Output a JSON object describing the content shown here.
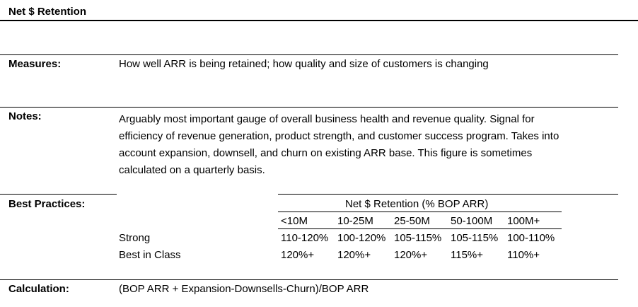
{
  "title": "Net $ Retention",
  "measures": {
    "label": "Measures:",
    "text": "How well ARR is being retained; how quality and size of customers is changing"
  },
  "notes": {
    "label": "Notes:",
    "lines": [
      "Arguably most important gauge of overall business health and revenue quality. Signal for",
      "efficiency of revenue generation, product strength, and customer success program. Takes into",
      "account expansion, downsell, and churn on existing ARR base. This figure is sometimes",
      "calculated on a quarterly basis."
    ]
  },
  "best_practices": {
    "label": "Best Practices:",
    "table_title": "Net $ Retention (% BOP ARR)",
    "columns": [
      "<10M",
      "10-25M",
      "25-50M",
      "50-100M",
      "100M+"
    ],
    "rows": [
      {
        "label": "Strong",
        "values": [
          "110-120%",
          "100-120%",
          "105-115%",
          "105-115%",
          "100-110%"
        ]
      },
      {
        "label": "Best in Class",
        "values": [
          "120%+",
          "120%+",
          "120%+",
          "115%+",
          "110%+"
        ]
      }
    ]
  },
  "calculation": {
    "label": "Calculation:",
    "text": "(BOP ARR + Expansion-Downsells-Churn)/BOP ARR"
  }
}
